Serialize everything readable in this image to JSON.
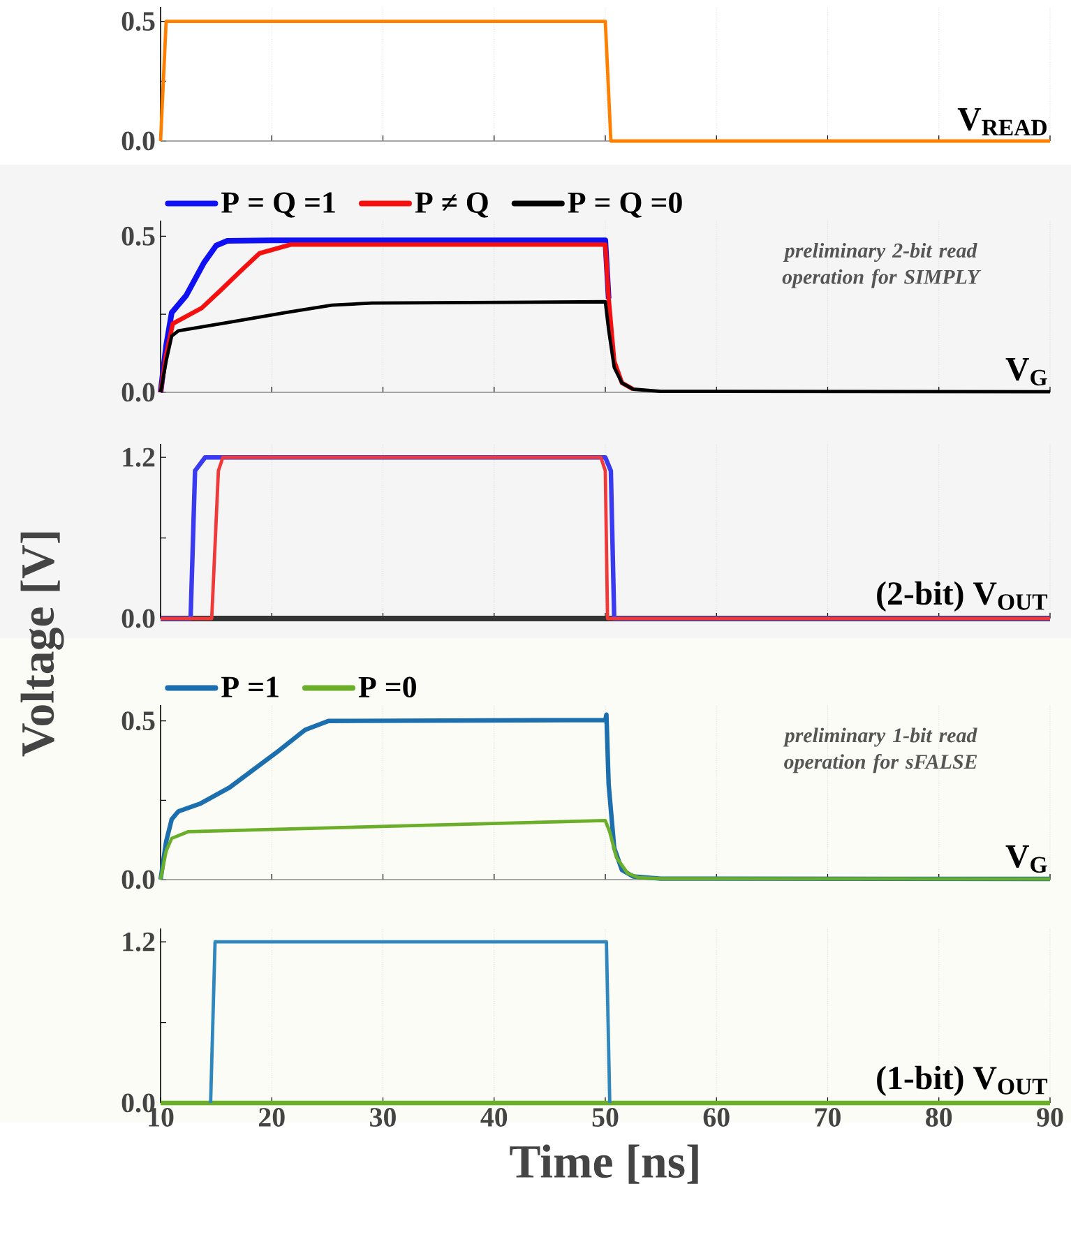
{
  "chart_data": [
    {
      "type": "line",
      "xlim": [
        10,
        90
      ],
      "ylim": [
        0,
        0.56
      ],
      "xticks": [
        10,
        20,
        30,
        40,
        50,
        60,
        70,
        80,
        90
      ],
      "yticks": [
        {
          "value": 0,
          "label": "0.0"
        },
        {
          "value": 0.25,
          "label": null
        },
        {
          "value": 0.5,
          "label": "0.5"
        }
      ],
      "grid": "x",
      "tick_labels": "y",
      "line_style": "solid",
      "annotations": [
        "V$_{READ}$"
      ],
      "series": [
        {
          "color": "#ff8000",
          "x": [
            10,
            10.5,
            50,
            50.5,
            90
          ],
          "values": [
            0,
            0.5,
            0.5,
            0,
            0
          ]
        }
      ]
    },
    {
      "type": "line",
      "xlim": [
        10,
        90
      ],
      "ylim": [
        0,
        0.55
      ],
      "xticks": [
        10,
        20,
        30,
        40,
        50,
        60,
        70,
        80,
        90
      ],
      "yticks": [
        {
          "value": 0,
          "label": "0.0"
        },
        {
          "value": 0.25,
          "label": null
        },
        {
          "value": 0.5,
          "label": "0.5"
        }
      ],
      "grid": "x",
      "tick_labels": "y",
      "line_style": "solid",
      "legend": "top left",
      "annotations": [
        "V$_{G}$",
        "preliminary 2-bit read operation for SIMPLY"
      ],
      "series": [
        {
          "name": "P = Q =1",
          "color": "#1010f5",
          "x": [
            10,
            10.5,
            11,
            12.3,
            13.9,
            15,
            16,
            20,
            50,
            50.3
          ],
          "values": [
            0,
            0.15,
            0.255,
            0.31,
            0.415,
            0.47,
            0.485,
            0.487,
            0.487,
            0.3
          ]
        },
        {
          "name": "P ≠ Q",
          "color": "#f51010",
          "x": [
            10,
            10.5,
            11.1,
            13.7,
            15.5,
            17.1,
            18.9,
            21.7,
            50,
            50.3,
            50.8,
            51.5,
            52.5
          ],
          "values": [
            0,
            0.12,
            0.22,
            0.27,
            0.33,
            0.385,
            0.445,
            0.473,
            0.473,
            0.3,
            0.1,
            0.03,
            0.01
          ]
        },
        {
          "name": "P = Q =0",
          "color": "#000000",
          "x": [
            10,
            10.5,
            11,
            11.6,
            16,
            21.2,
            25.4,
            29,
            50,
            50.3,
            50.8,
            51.5,
            52.5,
            55,
            90
          ],
          "values": [
            0,
            0.1,
            0.18,
            0.197,
            0.223,
            0.255,
            0.279,
            0.286,
            0.29,
            0.2,
            0.08,
            0.03,
            0.01,
            0.003,
            0.002
          ]
        }
      ]
    },
    {
      "type": "line",
      "xlim": [
        10,
        90
      ],
      "ylim": [
        0,
        1.3
      ],
      "xticks": [
        10,
        20,
        30,
        40,
        50,
        60,
        70,
        80,
        90
      ],
      "yticks": [
        {
          "value": 0,
          "label": "0.0"
        },
        {
          "value": 0.6,
          "label": null
        },
        {
          "value": 1.2,
          "label": "1.2"
        }
      ],
      "grid": "x",
      "tick_labels": "y",
      "line_style": "solid",
      "ylabel": "Voltage [V]",
      "annotations": [
        "(2-bit)  V$_{OUT}$"
      ],
      "series": [
        {
          "color": "#333333",
          "x": [
            10,
            90
          ],
          "values": [
            0,
            0
          ]
        },
        {
          "color": "#3a3af0",
          "x": [
            10,
            12.7,
            13.1,
            14,
            50,
            50.5,
            50.8,
            90
          ],
          "values": [
            0,
            0,
            1.1,
            1.2,
            1.2,
            1.1,
            0,
            0
          ]
        },
        {
          "color": "#f03a3a",
          "x": [
            10,
            14.6,
            15.2,
            15.6,
            49.6,
            50,
            50.2,
            90
          ],
          "values": [
            0,
            0,
            1.1,
            1.2,
            1.2,
            1.1,
            0,
            0
          ]
        }
      ]
    },
    {
      "type": "line",
      "xlim": [
        10,
        90
      ],
      "ylim": [
        0,
        0.55
      ],
      "xticks": [
        10,
        20,
        30,
        40,
        50,
        60,
        70,
        80,
        90
      ],
      "yticks": [
        {
          "value": 0,
          "label": "0.0"
        },
        {
          "value": 0.25,
          "label": null
        },
        {
          "value": 0.5,
          "label": "0.5"
        }
      ],
      "grid": "x",
      "tick_labels": "y",
      "line_style": "solid",
      "legend": "top left",
      "annotations": [
        "V$_{G}$",
        "preliminary 1-bit read operation for sFALSE"
      ],
      "series": [
        {
          "name": "P =1",
          "color": "#1b6fae",
          "x": [
            10,
            10.5,
            11,
            11.6,
            13.6,
            16.2,
            20.4,
            23,
            25.1,
            50,
            50.1,
            50.3,
            50.8,
            51.5,
            52.5,
            55,
            90
          ],
          "values": [
            0,
            0.12,
            0.19,
            0.215,
            0.24,
            0.29,
            0.4,
            0.472,
            0.5,
            0.503,
            0.52,
            0.3,
            0.1,
            0.03,
            0.01,
            0.003,
            0.002
          ]
        },
        {
          "name": "P =0",
          "color": "#6aae2a",
          "x": [
            10,
            10.5,
            11,
            12.5,
            24,
            34.5,
            50,
            50.4,
            51,
            52,
            53,
            55,
            90
          ],
          "values": [
            0,
            0.09,
            0.13,
            0.151,
            0.162,
            0.172,
            0.186,
            0.15,
            0.07,
            0.02,
            0.006,
            0.003,
            0.002
          ]
        }
      ]
    },
    {
      "type": "line",
      "xlim": [
        10,
        90
      ],
      "ylim": [
        0,
        1.3
      ],
      "xticks": [
        10,
        20,
        30,
        40,
        50,
        60,
        70,
        80,
        90
      ],
      "yticks": [
        {
          "value": 0,
          "label": "0.0"
        },
        {
          "value": 0.6,
          "label": null
        },
        {
          "value": 1.2,
          "label": "1.2"
        }
      ],
      "grid": "x",
      "line_style": "solid",
      "xlabel": "Time [ns]",
      "annotations": [
        "(1-bit)  V$_{OUT}$"
      ],
      "series": [
        {
          "color": "#6aae2a",
          "x": [
            10,
            90
          ],
          "values": [
            0,
            0
          ]
        },
        {
          "color": "#2f87bd",
          "x": [
            14.5,
            14.9,
            50.1,
            50.4
          ],
          "values": [
            0,
            1.2,
            1.2,
            0
          ]
        }
      ]
    }
  ]
}
